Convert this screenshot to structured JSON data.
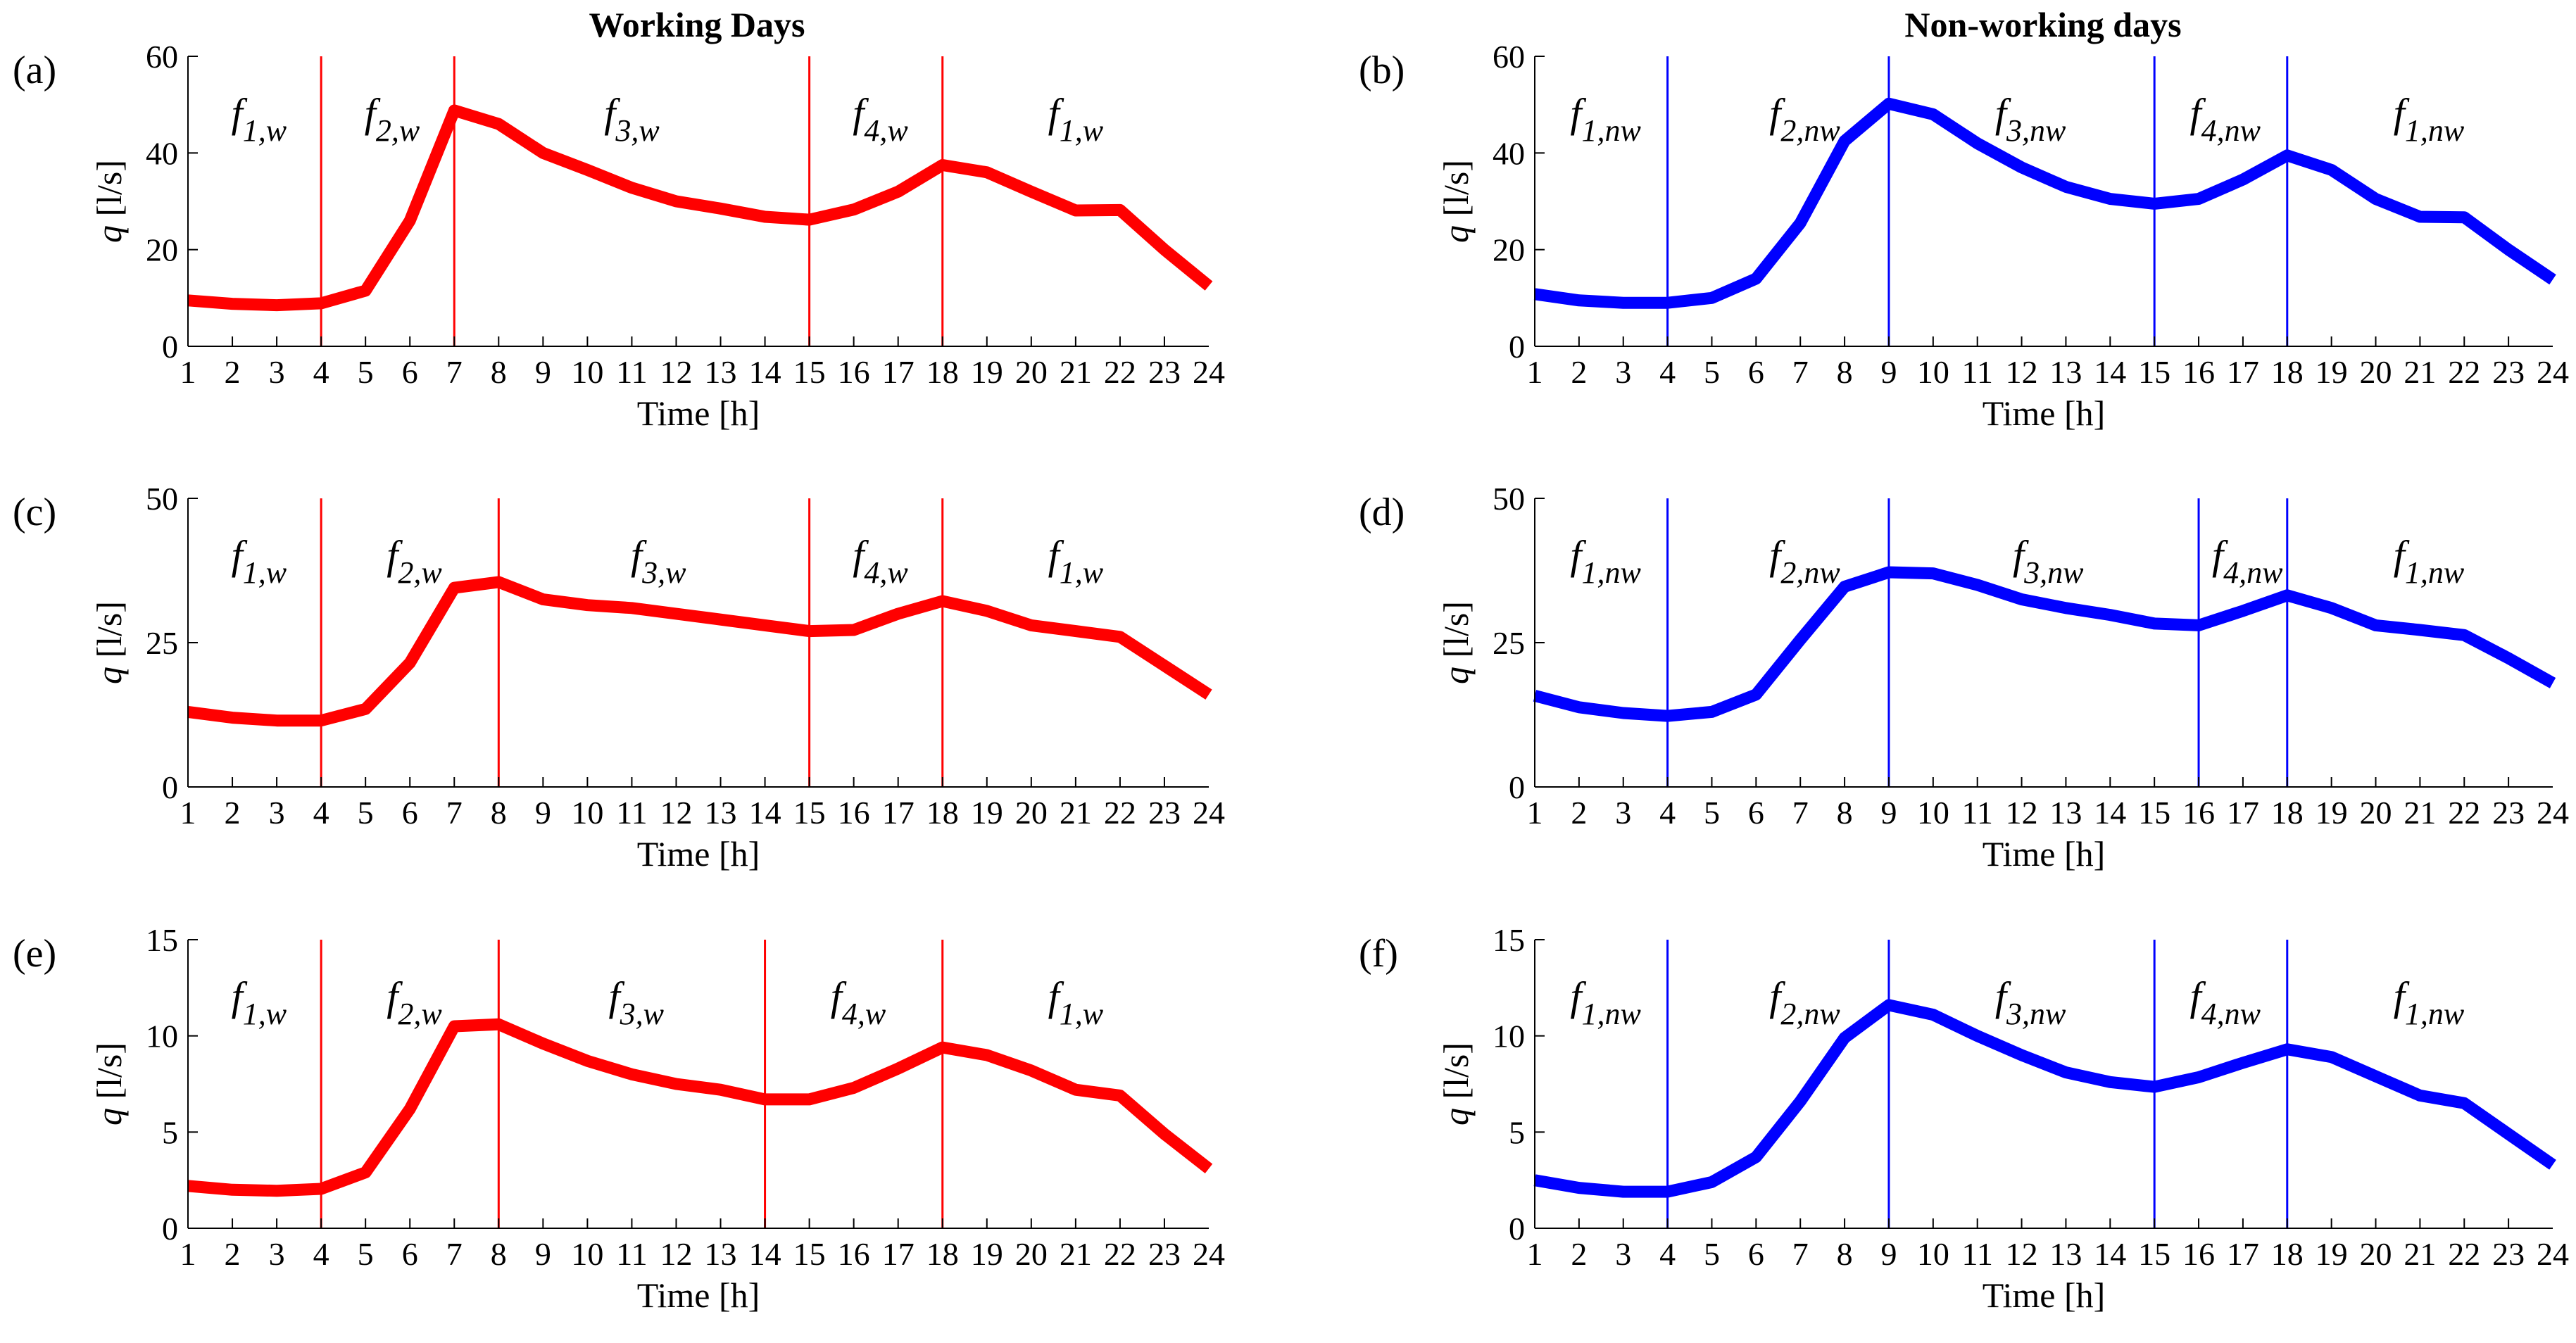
{
  "column_titles": [
    "Working Days",
    "Non-working days"
  ],
  "chart_data": [
    {
      "type": "line",
      "panel": "(a)",
      "title": "Working Days",
      "color": "#ff0000",
      "xlabel": "Time [h]",
      "ylabel_var": "q",
      "ylabel_unit": " [l/s]",
      "xlim": [
        1,
        24
      ],
      "ylim": [
        0,
        60
      ],
      "yticks": [
        0,
        20,
        40,
        60
      ],
      "x": [
        1,
        2,
        3,
        4,
        5,
        6,
        7,
        8,
        9,
        10,
        11,
        12,
        13,
        14,
        15,
        16,
        17,
        18,
        19,
        20,
        21,
        22,
        23,
        24
      ],
      "values": [
        9.5,
        8.8,
        8.5,
        8.9,
        11.5,
        26,
        48.8,
        46,
        40,
        36.5,
        32.8,
        30,
        28.5,
        26.8,
        26.2,
        28.3,
        32,
        37.5,
        36,
        32,
        28.1,
        28.2,
        20,
        12.5
      ],
      "dividers": [
        4,
        7,
        15,
        18
      ],
      "segments": [
        {
          "base": "f",
          "sub": "1,w",
          "x": 2.6
        },
        {
          "base": "f",
          "sub": "2,w",
          "x": 5.6
        },
        {
          "base": "f",
          "sub": "3,w",
          "x": 11
        },
        {
          "base": "f",
          "sub": "4,w",
          "x": 16.6
        },
        {
          "base": "f",
          "sub": "1,w",
          "x": 21
        }
      ]
    },
    {
      "type": "line",
      "panel": "(b)",
      "title": "Non-working days",
      "color": "#0000ff",
      "xlabel": "Time [h]",
      "ylabel_var": "q",
      "ylabel_unit": " [l/s]",
      "xlim": [
        1,
        24
      ],
      "ylim": [
        0,
        60
      ],
      "yticks": [
        0,
        20,
        40,
        60
      ],
      "x": [
        1,
        2,
        3,
        4,
        5,
        6,
        7,
        8,
        9,
        10,
        11,
        12,
        13,
        14,
        15,
        16,
        17,
        18,
        19,
        20,
        21,
        22,
        23,
        24
      ],
      "values": [
        10.8,
        9.5,
        9,
        9,
        10,
        14,
        25.5,
        42.5,
        50.2,
        48,
        42,
        37,
        33,
        30.5,
        29.5,
        30.5,
        34.5,
        39.5,
        36.5,
        30.5,
        26.8,
        26.7,
        20,
        13.8
      ],
      "dividers": [
        4,
        9,
        15,
        18
      ],
      "segments": [
        {
          "base": "f",
          "sub": "1,nw",
          "x": 2.6
        },
        {
          "base": "f",
          "sub": "2,nw",
          "x": 7.1
        },
        {
          "base": "f",
          "sub": "3,nw",
          "x": 12.2
        },
        {
          "base": "f",
          "sub": "4,nw",
          "x": 16.6
        },
        {
          "base": "f",
          "sub": "1,nw",
          "x": 21.2
        }
      ]
    },
    {
      "type": "line",
      "panel": "(c)",
      "color": "#ff0000",
      "xlabel": "Time [h]",
      "ylabel_var": "q",
      "ylabel_unit": " [l/s]",
      "xlim": [
        1,
        24
      ],
      "ylim": [
        0,
        50
      ],
      "yticks": [
        0,
        25,
        50
      ],
      "x": [
        1,
        2,
        3,
        4,
        5,
        6,
        7,
        8,
        9,
        10,
        11,
        12,
        13,
        14,
        15,
        16,
        17,
        18,
        19,
        20,
        21,
        22,
        23,
        24
      ],
      "values": [
        13,
        12,
        11.5,
        11.5,
        13.5,
        21.5,
        34.5,
        35.5,
        32.5,
        31.5,
        31,
        30,
        29,
        28,
        27,
        27.2,
        30,
        32.2,
        30.5,
        28,
        27,
        26,
        21,
        16
      ],
      "dividers": [
        4,
        8,
        15,
        18
      ],
      "segments": [
        {
          "base": "f",
          "sub": "1,w",
          "x": 2.6
        },
        {
          "base": "f",
          "sub": "2,w",
          "x": 6.1
        },
        {
          "base": "f",
          "sub": "3,w",
          "x": 11.6
        },
        {
          "base": "f",
          "sub": "4,w",
          "x": 16.6
        },
        {
          "base": "f",
          "sub": "1,w",
          "x": 21
        }
      ]
    },
    {
      "type": "line",
      "panel": "(d)",
      "color": "#0000ff",
      "xlabel": "Time [h]",
      "ylabel_var": "q",
      "ylabel_unit": " [l/s]",
      "xlim": [
        1,
        24
      ],
      "ylim": [
        0,
        50
      ],
      "yticks": [
        0,
        25,
        50
      ],
      "x": [
        1,
        2,
        3,
        4,
        5,
        6,
        7,
        8,
        9,
        10,
        11,
        12,
        13,
        14,
        15,
        16,
        17,
        18,
        19,
        20,
        21,
        22,
        23,
        24
      ],
      "values": [
        15.8,
        13.8,
        12.8,
        12.3,
        13,
        16,
        25.5,
        34.7,
        37.2,
        37,
        35,
        32.5,
        31,
        29.8,
        28.3,
        28,
        30.5,
        33.2,
        31,
        28,
        27.2,
        26.3,
        22.3,
        18
      ],
      "dividers": [
        4,
        9,
        16,
        18
      ],
      "segments": [
        {
          "base": "f",
          "sub": "1,nw",
          "x": 2.6
        },
        {
          "base": "f",
          "sub": "2,nw",
          "x": 7.1
        },
        {
          "base": "f",
          "sub": "3,nw",
          "x": 12.6
        },
        {
          "base": "f",
          "sub": "4,nw",
          "x": 17.1
        },
        {
          "base": "f",
          "sub": "1,nw",
          "x": 21.2
        }
      ]
    },
    {
      "type": "line",
      "panel": "(e)",
      "color": "#ff0000",
      "xlabel": "Time [h]",
      "ylabel_var": "q",
      "ylabel_unit": " [l/s]",
      "xlim": [
        1,
        24
      ],
      "ylim": [
        0,
        15
      ],
      "yticks": [
        0,
        5,
        10,
        15
      ],
      "x": [
        1,
        2,
        3,
        4,
        5,
        6,
        7,
        8,
        9,
        10,
        11,
        12,
        13,
        14,
        15,
        16,
        17,
        18,
        19,
        20,
        21,
        22,
        23,
        24
      ],
      "values": [
        2.2,
        2,
        1.95,
        2.05,
        2.9,
        6.2,
        10.5,
        10.6,
        9.6,
        8.7,
        8,
        7.5,
        7.2,
        6.7,
        6.7,
        7.3,
        8.3,
        9.4,
        9,
        8.2,
        7.2,
        6.9,
        4.9,
        3.1
      ],
      "dividers": [
        4,
        8,
        14,
        18
      ],
      "segments": [
        {
          "base": "f",
          "sub": "1,w",
          "x": 2.6
        },
        {
          "base": "f",
          "sub": "2,w",
          "x": 6.1
        },
        {
          "base": "f",
          "sub": "3,w",
          "x": 11.1
        },
        {
          "base": "f",
          "sub": "4,w",
          "x": 16.1
        },
        {
          "base": "f",
          "sub": "1,w",
          "x": 21
        }
      ]
    },
    {
      "type": "line",
      "panel": "(f)",
      "color": "#0000ff",
      "xlabel": "Time [h]",
      "ylabel_var": "q",
      "ylabel_unit": " [l/s]",
      "xlim": [
        1,
        24
      ],
      "ylim": [
        0,
        15
      ],
      "yticks": [
        0,
        5,
        10,
        15
      ],
      "x": [
        1,
        2,
        3,
        4,
        5,
        6,
        7,
        8,
        9,
        10,
        11,
        12,
        13,
        14,
        15,
        16,
        17,
        18,
        19,
        20,
        21,
        22,
        23,
        24
      ],
      "values": [
        2.5,
        2.1,
        1.9,
        1.9,
        2.4,
        3.7,
        6.6,
        9.9,
        11.6,
        11.1,
        10,
        9,
        8.1,
        7.6,
        7.35,
        7.85,
        8.6,
        9.3,
        8.9,
        7.9,
        6.9,
        6.5,
        4.9,
        3.3
      ],
      "dividers": [
        4,
        9,
        15,
        18
      ],
      "segments": [
        {
          "base": "f",
          "sub": "1,nw",
          "x": 2.6
        },
        {
          "base": "f",
          "sub": "2,nw",
          "x": 7.1
        },
        {
          "base": "f",
          "sub": "3,nw",
          "x": 12.2
        },
        {
          "base": "f",
          "sub": "4,nw",
          "x": 16.6
        },
        {
          "base": "f",
          "sub": "1,nw",
          "x": 21.2
        }
      ]
    }
  ]
}
